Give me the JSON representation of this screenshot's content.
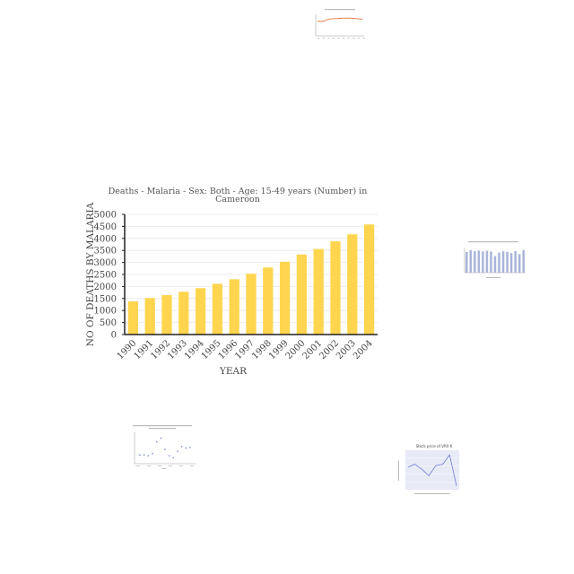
{
  "chart_data": [
    {
      "type": "bar",
      "title": "Deaths - Malaria - Sex: Both - Age: 15-49 years (Number) in Cameroon",
      "title_lines": [
        "Deaths - Malaria - Sex: Both - Age: 15-49 years (Number) in",
        "Cameroon"
      ],
      "xlabel": "YEAR",
      "ylabel": "NO OF DEATHS BY MALARIA",
      "categories": [
        "1990",
        "1991",
        "1992",
        "1993",
        "1994",
        "1995",
        "1996",
        "1997",
        "1998",
        "1999",
        "2000",
        "2001",
        "2002",
        "2003",
        "2004"
      ],
      "values": [
        1380,
        1520,
        1640,
        1780,
        1930,
        2110,
        2300,
        2530,
        2790,
        3030,
        3330,
        3560,
        3880,
        4170,
        4580
      ],
      "ylim": [
        0,
        5000
      ],
      "yticks": [
        0,
        500,
        1000,
        1500,
        2000,
        2500,
        3000,
        3500,
        4000,
        4500,
        5000
      ],
      "grid": true,
      "colors": {
        "bar": "#ffd54f",
        "axis": "#222222",
        "grid": "#e8e8e8",
        "text": "#555555"
      }
    },
    {
      "type": "line",
      "title": "",
      "x": [
        1,
        2,
        3,
        4,
        5,
        6,
        7,
        8,
        9,
        10,
        11,
        12,
        13,
        14,
        15
      ],
      "values": [
        55,
        54,
        55,
        60,
        63,
        64,
        64,
        65,
        66,
        66,
        66,
        65,
        64,
        63,
        62
      ],
      "ylim": [
        0,
        80
      ],
      "colors": {
        "line": "#e8763a"
      }
    },
    {
      "type": "bar",
      "title": "",
      "categories": [
        "1",
        "2",
        "3",
        "4",
        "5",
        "6",
        "7",
        "8",
        "9",
        "10",
        "11",
        "12",
        "13",
        "14",
        "15"
      ],
      "values": [
        0.82,
        0.9,
        0.86,
        0.88,
        0.85,
        0.87,
        0.84,
        0.66,
        0.8,
        0.85,
        0.83,
        0.78,
        0.86,
        0.74,
        0.9
      ],
      "ylim": [
        0,
        1
      ],
      "colors": {
        "bar": "#aab4d8"
      }
    },
    {
      "type": "scatter",
      "title": "",
      "x": [
        1,
        2,
        3,
        4,
        5,
        6,
        7,
        8,
        9,
        10,
        11,
        12,
        13
      ],
      "y": [
        0.25,
        0.25,
        0.22,
        0.3,
        0.72,
        0.85,
        0.45,
        0.22,
        0.15,
        0.38,
        0.55,
        0.5,
        0.52
      ],
      "ylim": [
        0,
        1
      ],
      "colors": {
        "point": "#8a9ad6"
      }
    },
    {
      "type": "line",
      "title": "Stock price of VRX K",
      "x": [
        1,
        2,
        3,
        4,
        5,
        6,
        7,
        8
      ],
      "values": [
        0.58,
        0.66,
        0.52,
        0.34,
        0.62,
        0.66,
        0.92,
        0.06
      ],
      "ylim": [
        0,
        1
      ],
      "colors": {
        "line": "#6b7bd6",
        "background": "#e8eaf6"
      }
    }
  ]
}
